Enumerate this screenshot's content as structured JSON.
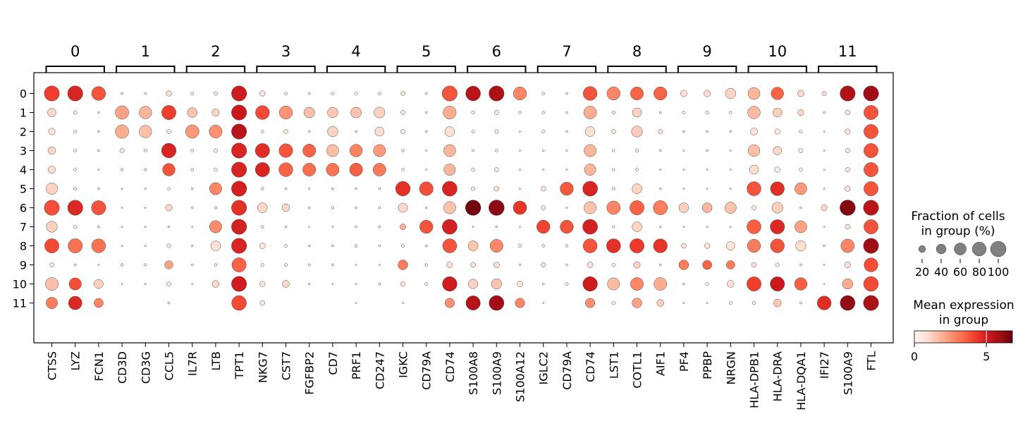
{
  "chart_data": {
    "type": "dotplot",
    "group_labels": [
      "0",
      "1",
      "2",
      "3",
      "4",
      "5",
      "6",
      "7",
      "8",
      "9",
      "10",
      "11"
    ],
    "genes": [
      "CTSS",
      "LYZ",
      "FCN1",
      "CD3D",
      "CD3G",
      "CCL5",
      "IL7R",
      "LTB",
      "TPT1",
      "NKG7",
      "CST7",
      "FGFBP2",
      "CD7",
      "PRF1",
      "CD247",
      "IGKC",
      "CD79A",
      "CD74",
      "S100A8",
      "S100A9",
      "S100A12",
      "IGLC2",
      "CD79A",
      "CD74",
      "LST1",
      "COTL1",
      "AIF1",
      "PF4",
      "PPBP",
      "NRGN",
      "HLA-DPB1",
      "HLA-DRA",
      "HLA-DQA1",
      "IFI27",
      "S100A9",
      "FTL"
    ],
    "rows": [
      "0",
      "1",
      "2",
      "3",
      "4",
      "5",
      "6",
      "7",
      "8",
      "9",
      "10",
      "11"
    ],
    "fraction": [
      [
        95,
        95,
        80,
        2,
        2,
        12,
        4,
        6,
        95,
        12,
        4,
        2,
        4,
        4,
        4,
        8,
        2,
        95,
        90,
        95,
        72,
        3,
        2,
        80,
        72,
        70,
        72,
        18,
        18,
        45,
        60,
        65,
        18,
        8,
        95,
        95
      ],
      [
        30,
        6,
        2,
        75,
        65,
        85,
        40,
        22,
        95,
        80,
        72,
        48,
        45,
        48,
        50,
        8,
        2,
        70,
        5,
        8,
        3,
        3,
        2,
        68,
        5,
        35,
        2,
        4,
        4,
        3,
        65,
        35,
        15,
        2,
        10,
        85
      ],
      [
        18,
        4,
        2,
        75,
        65,
        8,
        75,
        70,
        95,
        4,
        8,
        2,
        45,
        2,
        35,
        8,
        2,
        40,
        4,
        6,
        1,
        4,
        2,
        40,
        8,
        50,
        8,
        2,
        2,
        2,
        20,
        12,
        4,
        1,
        12,
        85
      ],
      [
        25,
        4,
        2,
        8,
        4,
        88,
        4,
        6,
        95,
        85,
        78,
        70,
        60,
        65,
        62,
        3,
        1,
        60,
        2,
        3,
        1,
        2,
        1,
        62,
        3,
        5,
        2,
        1,
        2,
        1,
        58,
        30,
        8,
        1,
        8,
        85
      ],
      [
        22,
        4,
        1,
        3,
        3,
        65,
        3,
        5,
        95,
        85,
        80,
        70,
        68,
        70,
        68,
        3,
        1,
        55,
        5,
        8,
        1,
        1,
        1,
        55,
        3,
        4,
        1,
        1,
        1,
        1,
        35,
        12,
        5,
        1,
        8,
        85
      ],
      [
        55,
        4,
        2,
        1,
        1,
        3,
        2,
        62,
        95,
        3,
        2,
        1,
        2,
        2,
        2,
        88,
        78,
        92,
        6,
        10,
        1,
        10,
        72,
        92,
        4,
        40,
        2,
        1,
        1,
        1,
        82,
        80,
        60,
        1,
        12,
        85
      ],
      [
        95,
        95,
        85,
        1,
        1,
        18,
        2,
        3,
        95,
        40,
        25,
        2,
        3,
        2,
        2,
        35,
        2,
        62,
        98,
        99,
        75,
        8,
        1,
        62,
        75,
        85,
        85,
        40,
        40,
        55,
        8,
        50,
        2,
        15,
        99,
        95
      ],
      [
        50,
        5,
        2,
        1,
        1,
        2,
        1,
        62,
        95,
        3,
        2,
        1,
        1,
        2,
        2,
        14,
        72,
        92,
        1,
        2,
        1,
        72,
        72,
        92,
        3,
        40,
        2,
        1,
        1,
        1,
        82,
        85,
        60,
        1,
        10,
        85
      ],
      [
        85,
        85,
        80,
        1,
        1,
        6,
        2,
        40,
        95,
        14,
        4,
        2,
        2,
        3,
        2,
        4,
        2,
        82,
        42,
        70,
        5,
        3,
        3,
        82,
        82,
        85,
        80,
        10,
        12,
        30,
        72,
        80,
        45,
        2,
        75,
        95
      ],
      [
        8,
        2,
        1,
        3,
        3,
        28,
        2,
        3,
        85,
        4,
        4,
        2,
        2,
        1,
        1,
        40,
        3,
        14,
        10,
        14,
        2,
        8,
        2,
        14,
        5,
        18,
        2,
        40,
        35,
        30,
        10,
        6,
        2,
        1,
        15,
        80
      ],
      [
        68,
        62,
        35,
        1,
        1,
        8,
        1,
        20,
        95,
        12,
        20,
        2,
        1,
        1,
        2,
        10,
        4,
        88,
        38,
        45,
        14,
        2,
        4,
        88,
        62,
        68,
        68,
        2,
        4,
        20,
        85,
        85,
        65,
        1,
        45,
        90
      ],
      [
        55,
        75,
        35,
        0,
        0,
        2,
        0,
        0,
        90,
        10,
        0,
        0,
        0,
        1,
        0,
        1,
        0,
        38,
        85,
        92,
        38,
        1,
        0,
        38,
        5,
        40,
        20,
        1,
        1,
        4,
        5,
        25,
        2,
        80,
        92,
        95
      ]
    ],
    "mean_expression": [
      [
        4.2,
        4.8,
        3.8,
        0.1,
        0.1,
        0.8,
        0.3,
        0.4,
        5.0,
        0.6,
        0.3,
        0.1,
        0.3,
        0.3,
        0.3,
        0.6,
        0.1,
        3.8,
        5.5,
        5.8,
        2.8,
        0.2,
        0.1,
        3.8,
        2.8,
        3.5,
        3.5,
        0.8,
        0.9,
        1.1,
        1.8,
        3.5,
        1.0,
        0.9,
        5.7,
        6.0
      ],
      [
        1.0,
        0.4,
        0.2,
        2.2,
        1.8,
        4.2,
        1.5,
        1.1,
        5.1,
        4.0,
        2.5,
        1.6,
        1.4,
        1.5,
        1.2,
        0.5,
        0.1,
        2.0,
        0.5,
        0.5,
        0.2,
        0.3,
        0.1,
        2.0,
        0.4,
        1.1,
        0.2,
        0.3,
        0.3,
        0.2,
        1.7,
        1.2,
        1.0,
        0.1,
        0.6,
        3.8
      ],
      [
        0.8,
        0.3,
        0.2,
        2.0,
        1.6,
        0.5,
        2.4,
        2.6,
        5.5,
        0.3,
        0.5,
        0.1,
        1.1,
        0.1,
        0.9,
        0.5,
        0.1,
        0.8,
        0.3,
        0.4,
        0.1,
        0.3,
        0.1,
        0.8,
        0.6,
        1.3,
        0.6,
        0.1,
        0.1,
        0.1,
        0.7,
        0.4,
        0.3,
        0.1,
        0.7,
        3.8
      ],
      [
        1.0,
        0.3,
        0.2,
        0.6,
        0.3,
        4.8,
        0.3,
        0.4,
        4.8,
        4.6,
        3.8,
        3.5,
        1.6,
        2.9,
        2.4,
        0.2,
        0.1,
        1.8,
        0.1,
        0.2,
        0.1,
        0.1,
        0.1,
        1.8,
        0.2,
        0.3,
        0.1,
        0.1,
        0.1,
        0.1,
        1.6,
        1.0,
        0.5,
        0.1,
        0.5,
        3.8
      ],
      [
        0.9,
        0.3,
        0.1,
        0.2,
        0.2,
        3.8,
        0.2,
        0.3,
        4.8,
        4.8,
        3.5,
        3.3,
        3.2,
        3.6,
        3.1,
        0.2,
        0.1,
        1.8,
        0.3,
        0.5,
        0.1,
        0.1,
        0.1,
        1.8,
        0.2,
        0.3,
        0.1,
        0.1,
        0.1,
        0.1,
        0.9,
        0.4,
        0.3,
        0.1,
        0.5,
        3.8
      ],
      [
        1.2,
        0.3,
        0.2,
        0.1,
        0.1,
        0.2,
        0.1,
        2.8,
        4.9,
        0.2,
        0.1,
        0.1,
        0.1,
        0.1,
        0.1,
        4.5,
        3.9,
        4.8,
        0.4,
        0.6,
        0.1,
        0.6,
        3.7,
        4.8,
        0.3,
        1.1,
        0.1,
        0.1,
        0.1,
        0.1,
        3.8,
        4.6,
        2.4,
        0.1,
        0.8,
        3.8
      ],
      [
        3.9,
        4.7,
        3.8,
        0.1,
        0.1,
        1.0,
        0.1,
        0.2,
        4.5,
        1.0,
        1.0,
        0.1,
        0.2,
        0.1,
        0.1,
        1.0,
        0.1,
        1.5,
        6.6,
        6.3,
        4.4,
        0.5,
        0.1,
        1.5,
        2.8,
        3.5,
        3.0,
        1.2,
        1.8,
        1.5,
        0.5,
        1.2,
        0.1,
        1.0,
        6.4,
        5.5
      ],
      [
        1.2,
        0.3,
        0.2,
        0.1,
        0.1,
        0.1,
        0.1,
        2.7,
        4.9,
        0.2,
        0.1,
        0.1,
        0.1,
        0.1,
        0.1,
        1.9,
        3.8,
        4.9,
        0.1,
        0.1,
        0.1,
        4.1,
        3.8,
        4.9,
        0.2,
        1.1,
        0.1,
        0.1,
        0.1,
        0.1,
        3.6,
        4.7,
        2.2,
        0.1,
        0.6,
        3.8
      ],
      [
        4.0,
        3.2,
        3.2,
        0.1,
        0.1,
        0.4,
        0.1,
        0.8,
        4.8,
        0.6,
        0.3,
        0.1,
        0.1,
        0.2,
        0.1,
        0.3,
        0.1,
        3.8,
        1.5,
        2.8,
        0.3,
        0.3,
        0.2,
        3.8,
        4.5,
        4.3,
        4.4,
        0.8,
        0.7,
        0.7,
        3.0,
        3.8,
        0.9,
        0.1,
        2.8,
        6.0
      ],
      [
        0.5,
        0.1,
        0.1,
        0.3,
        0.3,
        2.2,
        0.1,
        0.2,
        3.5,
        0.3,
        0.3,
        0.1,
        0.1,
        0.1,
        0.1,
        3.0,
        0.3,
        0.8,
        0.6,
        0.8,
        0.1,
        0.7,
        0.1,
        0.8,
        0.3,
        1.1,
        0.1,
        3.0,
        3.5,
        3.0,
        0.7,
        0.4,
        0.1,
        0.1,
        0.8,
        3.9
      ],
      [
        1.6,
        3.9,
        1.2,
        0.1,
        0.1,
        0.5,
        0.1,
        1.0,
        5.0,
        0.6,
        1.0,
        0.1,
        0.1,
        0.1,
        0.1,
        0.6,
        0.3,
        5.0,
        1.2,
        1.5,
        0.6,
        0.1,
        0.3,
        5.0,
        1.7,
        2.8,
        2.0,
        0.1,
        0.2,
        0.8,
        4.2,
        5.1,
        3.6,
        0.1,
        2.0,
        4.0
      ],
      [
        3.0,
        4.7,
        2.8,
        0,
        0,
        0.2,
        0,
        0,
        4.0,
        0.5,
        0,
        0,
        0,
        0.1,
        0,
        0.1,
        0,
        2.6,
        5.6,
        6.0,
        2.8,
        0.1,
        0,
        2.6,
        0.3,
        2.2,
        1.2,
        0.1,
        0.1,
        0.2,
        0.3,
        1.4,
        0.1,
        4.6,
        6.2,
        5.8
      ]
    ],
    "size_legend": {
      "title": "Fraction of cells\nin group (%)",
      "ticks": [
        20,
        40,
        60,
        80,
        100
      ]
    },
    "color_legend": {
      "title": "Mean expression\nin group",
      "ticks": [
        0,
        5
      ],
      "vmin": 0,
      "vmax": 6.8,
      "cmap": "Reds"
    }
  }
}
